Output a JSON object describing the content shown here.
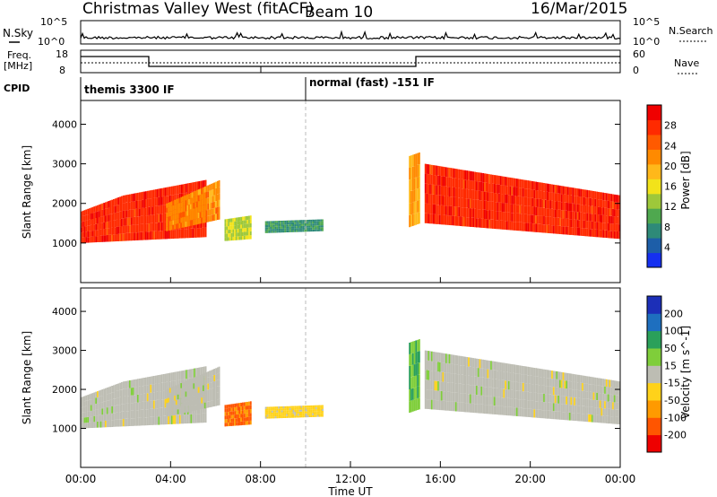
{
  "header": {
    "title": "Christmas Valley West (fitACF)",
    "beam": "Beam 10",
    "date": "16/Mar/2015"
  },
  "noise_panel": {
    "left_label": "N.Sky",
    "right_label": "N.Search",
    "left_ticks": [
      "10^5",
      "10^0"
    ],
    "right_ticks": [
      "10^5",
      "10^0"
    ]
  },
  "freq_panel": {
    "left_label_1": "Freq.",
    "left_label_2": "[MHz]",
    "right_label": "Nave",
    "left_ticks": [
      "18",
      "8"
    ],
    "right_ticks": [
      "60",
      "0"
    ]
  },
  "cpid_panel": {
    "label": "CPID",
    "program_1": "themis 3300 IF",
    "program_2": "normal (fast) -151 IF"
  },
  "power_colorbar": {
    "label": "Power [dB]",
    "ticks": [
      "4",
      "8",
      "12",
      "16",
      "20",
      "24",
      "28"
    ],
    "colors": [
      "#1530f0",
      "#1d5ea8",
      "#2e8a78",
      "#4fa84f",
      "#9ec83a",
      "#f2e31a",
      "#ffb81a",
      "#ff8a00",
      "#ff5a00",
      "#ff2a00",
      "#f00000"
    ]
  },
  "velocity_colorbar": {
    "label": "Velocity [m s^-1]",
    "ticks": [
      "200",
      "100",
      "50",
      "15",
      "-15",
      "-50",
      "-100",
      "-200"
    ],
    "colors": [
      "#1c2fb8",
      "#1e6fbf",
      "#2aa05a",
      "#7fce3a",
      "#bdbdb3",
      "#ffd21a",
      "#ff9a00",
      "#ff5500",
      "#ee0000"
    ]
  },
  "x_axis": {
    "label": "Time UT",
    "ticks": [
      "00:00",
      "04:00",
      "08:00",
      "12:00",
      "16:00",
      "20:00",
      "00:00"
    ]
  },
  "chart_data": [
    {
      "type": "heatmap",
      "name_key": "power",
      "ylabel": "Slant Range [km]",
      "y_ticks": [
        1000,
        2000,
        3000,
        4000
      ],
      "ylim": [
        0,
        4600
      ],
      "xlim_hours": [
        0,
        24
      ],
      "colorbar_label": "Power [dB]",
      "colorbar_range": [
        0,
        32
      ],
      "regions": [
        {
          "t": [
            0.0,
            5.6
          ],
          "r_low": [
            1000,
            1050,
            1100,
            1150
          ],
          "r_high": [
            1800,
            2200,
            2400,
            2600
          ],
          "value": 28
        },
        {
          "t": [
            3.8,
            6.2
          ],
          "r_low": [
            1300,
            1600
          ],
          "r_high": [
            2000,
            2600
          ],
          "value": 22
        },
        {
          "t": [
            6.4,
            7.6
          ],
          "r_low": [
            1050,
            1100
          ],
          "r_high": [
            1600,
            1700
          ],
          "value": 14
        },
        {
          "t": [
            8.2,
            10.8
          ],
          "r_low": [
            1250,
            1300
          ],
          "r_high": [
            1550,
            1600
          ],
          "value": 8
        },
        {
          "t": [
            14.6,
            15.1
          ],
          "r_low": [
            1400,
            1500
          ],
          "r_high": [
            3200,
            3300
          ],
          "value": 20
        },
        {
          "t": [
            15.3,
            24.0
          ],
          "r_low": [
            1500,
            1100
          ],
          "r_high": [
            3000,
            2200
          ],
          "value": 28
        }
      ]
    },
    {
      "type": "heatmap",
      "name_key": "velocity",
      "ylabel": "Slant Range [km]",
      "y_ticks": [
        1000,
        2000,
        3000,
        4000
      ],
      "ylim": [
        0,
        4600
      ],
      "xlim_hours": [
        0,
        24
      ],
      "colorbar_label": "Velocity [m s^-1]",
      "colorbar_range": [
        -200,
        200
      ],
      "regions": [
        {
          "t": [
            0.0,
            5.6
          ],
          "r_low": [
            1000,
            1050,
            1100,
            1150
          ],
          "r_high": [
            1800,
            2200,
            2400,
            2600
          ],
          "value": 0
        },
        {
          "t": [
            3.8,
            6.2
          ],
          "r_low": [
            1300,
            1600
          ],
          "r_high": [
            2000,
            2600
          ],
          "value": 0
        },
        {
          "t": [
            6.4,
            7.6
          ],
          "r_low": [
            1050,
            1100
          ],
          "r_high": [
            1600,
            1700
          ],
          "value": -120
        },
        {
          "t": [
            8.2,
            10.8
          ],
          "r_low": [
            1250,
            1300
          ],
          "r_high": [
            1550,
            1600
          ],
          "value": -40
        },
        {
          "t": [
            14.6,
            15.1
          ],
          "r_low": [
            1400,
            1500
          ],
          "r_high": [
            3200,
            3300
          ],
          "value": 60
        },
        {
          "t": [
            15.3,
            24.0
          ],
          "r_low": [
            1500,
            1100
          ],
          "r_high": [
            3000,
            2200
          ],
          "value": 0
        }
      ]
    }
  ]
}
